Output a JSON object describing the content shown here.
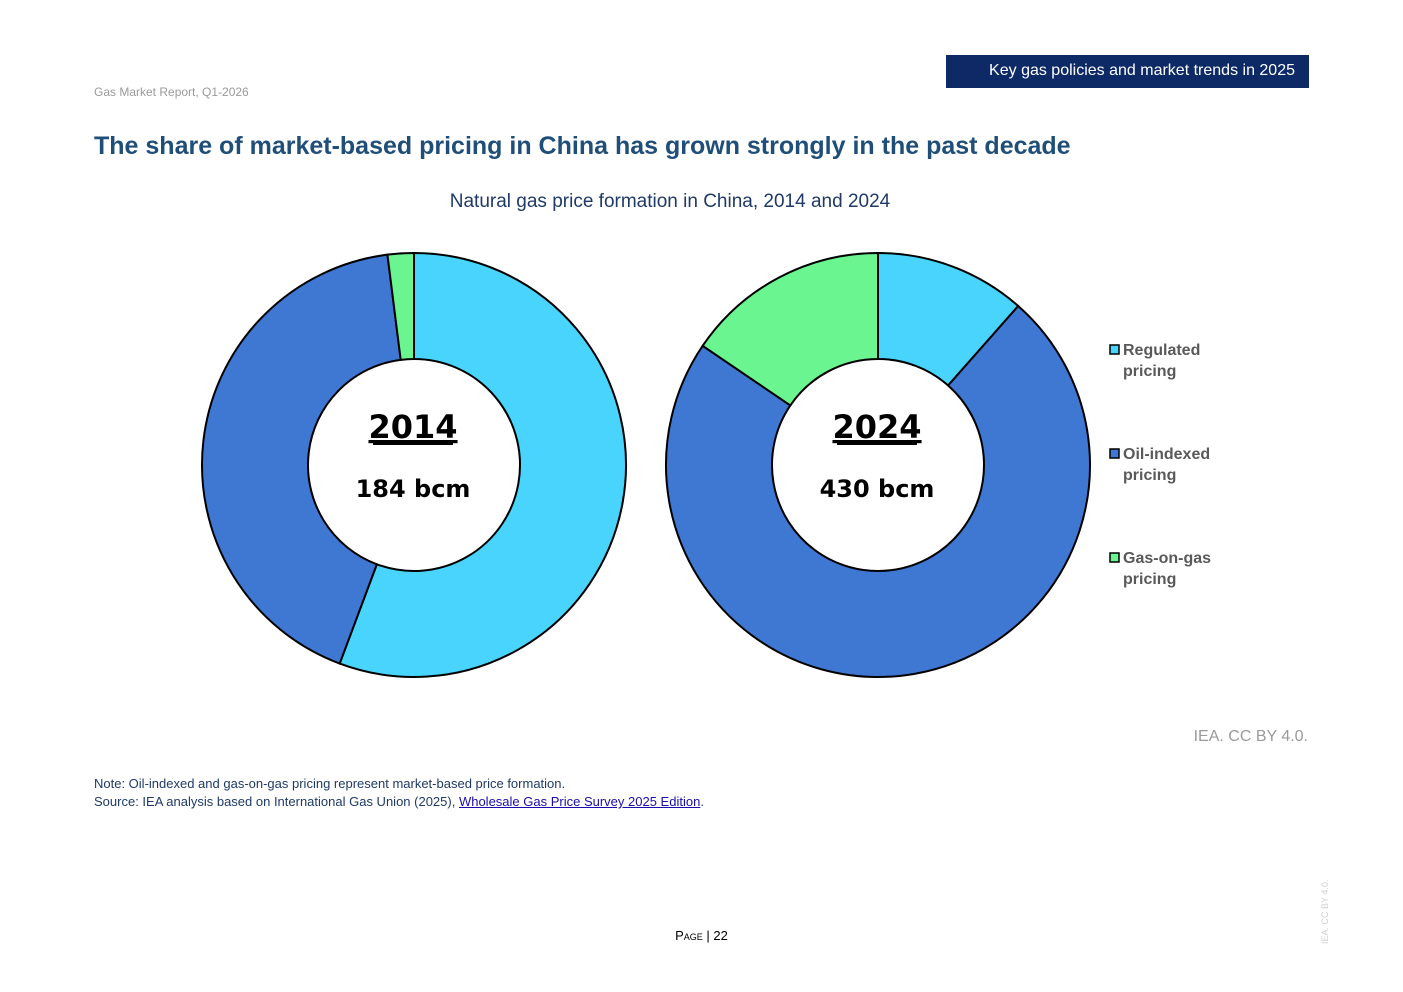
{
  "header": {
    "report_name": "Gas Market Report, Q1-2026",
    "section_title": "Key gas policies and market trends in 2025"
  },
  "main_title": "The share of market-based pricing in China has grown strongly in the past decade",
  "chart_data": {
    "type": "pie",
    "title": "Natural gas price formation in China, 2014 and 2024",
    "legend_position": "right",
    "categories": [
      "Regulated pricing",
      "Oil-indexed pricing",
      "Gas-on-gas pricing"
    ],
    "colors": {
      "Regulated pricing": "#48d4fc",
      "Oil-indexed pricing": "#3f78d3",
      "Gas-on-gas pricing": "#6af590"
    },
    "charts": [
      {
        "year_label": "2014",
        "total_label": "184 bcm",
        "values": [
          55.7,
          42.3,
          2.0
        ]
      },
      {
        "year_label": "2024",
        "total_label": "430 bcm",
        "values": [
          11.5,
          73.0,
          15.5
        ]
      }
    ]
  },
  "credit": "IEA. CC BY 4.0.",
  "note": {
    "line1": "Note: Oil-indexed and gas-on-gas pricing represent market-based price formation.",
    "source_prefix": "Source: IEA analysis based on International Gas Union (2025), ",
    "source_link": "Wholesale Gas Price Survey 2025 Edition",
    "source_suffix": "."
  },
  "footer": {
    "page_label": "Page",
    "separator": "|",
    "page_number": "22",
    "watermark": "IEA. CC BY 4.0."
  }
}
